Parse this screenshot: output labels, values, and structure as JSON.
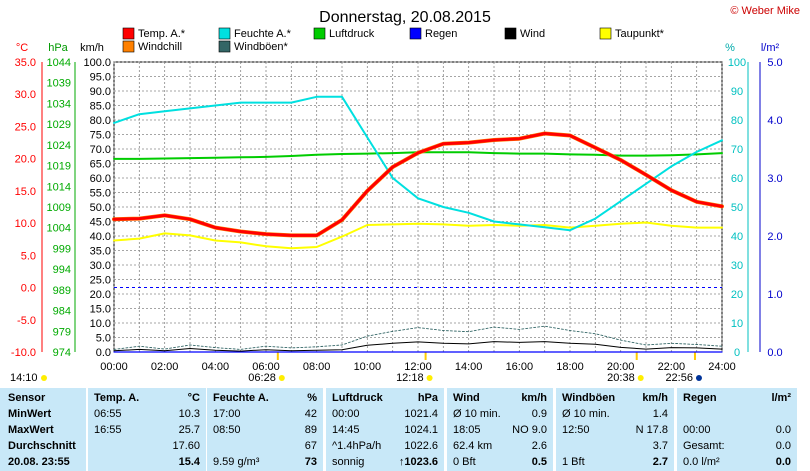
{
  "header": {
    "title": "Donnerstag, 20.08.2015",
    "credit": "© Weber Mike"
  },
  "colors": {
    "temp": "#ff0000",
    "windchill": "#ff8000",
    "humidity": "#00e0e0",
    "pressure": "#00cc00",
    "rain": "#0000ff",
    "wind": "#000000",
    "gust": "#336666",
    "dewpoint": "#ffff00",
    "table_bg": "#c8e8f8"
  },
  "legend": [
    {
      "label": "Temp. A.*",
      "color": "#ff0000"
    },
    {
      "label": "Feuchte A.*",
      "color": "#00e0e0"
    },
    {
      "label": "Luftdruck",
      "color": "#00cc00"
    },
    {
      "label": "Regen",
      "color": "#0000ff"
    },
    {
      "label": "Wind",
      "color": "#000000"
    },
    {
      "label": "Taupunkt*",
      "color": "#ffff00"
    },
    {
      "label": "Windchill",
      "color": "#ff8000"
    },
    {
      "label": "Windböen*",
      "color": "#336666"
    }
  ],
  "axes": {
    "temp_unit": "°C",
    "pressure_unit": "hPa",
    "wind_unit": "km/h",
    "humidity_unit": "%",
    "rain_unit": "l/m²",
    "temp_ticks": [
      "35.0",
      "30.0",
      "25.0",
      "20.0",
      "15.0",
      "10.0",
      "5.0",
      "0.0",
      "-5.0",
      "-10.0"
    ],
    "pressure_ticks": [
      "1044",
      "1039",
      "1034",
      "1029",
      "1024",
      "1019",
      "1014",
      "1009",
      "1004",
      "999",
      "994",
      "989",
      "984",
      "979",
      "974"
    ],
    "wind_ticks": [
      "100.0",
      "95.0",
      "90.0",
      "85.0",
      "80.0",
      "75.0",
      "70.0",
      "65.0",
      "60.0",
      "55.0",
      "50.0",
      "45.0",
      "40.0",
      "35.0",
      "30.0",
      "25.0",
      "20.0",
      "15.0",
      "10.0",
      "5.0",
      "0.0"
    ],
    "humidity_ticks": [
      "100",
      "90",
      "80",
      "70",
      "60",
      "50",
      "40",
      "30",
      "20",
      "10",
      "0"
    ],
    "rain_ticks": [
      "5.0",
      "4.0",
      "3.0",
      "2.0",
      "1.0",
      "0.0"
    ],
    "time_ticks": [
      "00:00",
      "02:00",
      "04:00",
      "06:00",
      "08:00",
      "10:00",
      "12:00",
      "14:00",
      "16:00",
      "18:00",
      "20:00",
      "22:00",
      "24:00"
    ]
  },
  "chart_data": {
    "type": "line",
    "title": "Donnerstag, 20.08.2015",
    "xlabel": "",
    "ylabel": "",
    "x_range": [
      "00:00",
      "24:00"
    ],
    "ylim_temp": [
      -10,
      35
    ],
    "ylim_pressure": [
      974,
      1044
    ],
    "ylim_wind": [
      0,
      100
    ],
    "ylim_humidity": [
      0,
      100
    ],
    "ylim_rain": [
      0,
      5
    ],
    "hours": [
      0,
      1,
      2,
      3,
      4,
      5,
      6,
      7,
      8,
      9,
      10,
      11,
      12,
      13,
      14,
      15,
      16,
      17,
      18,
      19,
      20,
      21,
      22,
      23,
      24
    ],
    "series": [
      {
        "name": "Temp. A.*",
        "axis": "temp",
        "values": [
          10.6,
          10.7,
          11.2,
          10.6,
          9.3,
          8.7,
          8.3,
          8.1,
          8.1,
          10.5,
          15.0,
          18.7,
          20.9,
          22.3,
          22.5,
          22.9,
          23.1,
          23.9,
          23.6,
          21.7,
          19.8,
          17.5,
          15.1,
          13.3,
          12.6
        ]
      },
      {
        "name": "Windchill",
        "axis": "temp",
        "values": [
          10.6,
          10.7,
          11.2,
          10.6,
          9.3,
          8.7,
          8.3,
          8.1,
          8.1,
          10.5,
          15.0,
          18.7,
          20.9,
          22.3,
          22.5,
          22.9,
          23.1,
          23.9,
          23.6,
          21.7,
          19.8,
          17.5,
          15.1,
          13.3,
          12.6
        ]
      },
      {
        "name": "Feuchte A.*",
        "axis": "humidity",
        "values": [
          79,
          82,
          83,
          84,
          85,
          86,
          86,
          86,
          88,
          88,
          74,
          60,
          53,
          50,
          48,
          45,
          44,
          43,
          42,
          46,
          52,
          58,
          64,
          69,
          73
        ]
      },
      {
        "name": "Luftdruck",
        "axis": "pressure",
        "values": [
          1020.6,
          1020.6,
          1020.7,
          1020.8,
          1020.9,
          1021.0,
          1021.1,
          1021.3,
          1021.6,
          1021.8,
          1021.9,
          1022.0,
          1022.2,
          1022.2,
          1022.2,
          1022.0,
          1021.9,
          1021.9,
          1021.7,
          1021.6,
          1021.4,
          1021.4,
          1021.5,
          1021.7,
          1022.0
        ]
      },
      {
        "name": "Taupunkt*",
        "axis": "temp",
        "values": [
          7.3,
          7.6,
          8.4,
          8.1,
          7.3,
          7.0,
          6.4,
          6.1,
          6.3,
          7.9,
          9.7,
          9.8,
          9.9,
          9.8,
          9.6,
          9.7,
          9.6,
          9.7,
          9.3,
          9.6,
          9.9,
          10.1,
          9.6,
          9.3,
          9.3
        ]
      },
      {
        "name": "Wind",
        "axis": "wind",
        "values": [
          0.4,
          0.9,
          0.4,
          1.2,
          0.6,
          0.3,
          0.8,
          0.4,
          0.6,
          0.8,
          2.3,
          3.0,
          3.5,
          3.0,
          2.8,
          3.6,
          3.3,
          3.6,
          3.0,
          2.7,
          1.6,
          1.0,
          1.5,
          1.4,
          1.0
        ]
      },
      {
        "name": "Windböen*",
        "axis": "wind",
        "values": [
          0.9,
          2.0,
          1.0,
          2.4,
          1.5,
          0.9,
          2.0,
          1.4,
          1.8,
          2.4,
          5.5,
          7.1,
          8.4,
          7.4,
          7.0,
          8.6,
          7.8,
          8.9,
          7.4,
          6.3,
          4.1,
          2.4,
          3.0,
          2.6,
          2.0
        ]
      },
      {
        "name": "Regen",
        "axis": "rain",
        "values": [
          0,
          0,
          0,
          0,
          0,
          0,
          0,
          0,
          0,
          0,
          0,
          0,
          0,
          0,
          0,
          0,
          0,
          0,
          0,
          0,
          0,
          0,
          0,
          0,
          0
        ]
      }
    ],
    "reference_line": {
      "axis": "temp",
      "value": 0
    },
    "sun_events": [
      {
        "time": "14:10",
        "kind": "sun"
      },
      {
        "time": "06:28",
        "kind": "sunrise"
      },
      {
        "time": "12:18",
        "kind": "noon"
      },
      {
        "time": "20:38",
        "kind": "sunset"
      },
      {
        "time": "22:56",
        "kind": "moon"
      }
    ]
  },
  "stats": {
    "row_labels": [
      "Sensor",
      "MinWert",
      "MaxWert",
      "Durchschnitt",
      "20.08.  23:55"
    ],
    "temp": {
      "h": "Temp. A.",
      "u": "°C",
      "rows": [
        [
          "06:55",
          "10.3"
        ],
        [
          "16:55",
          "25.7"
        ],
        [
          "",
          "17.60"
        ],
        [
          "",
          "15.4"
        ]
      ]
    },
    "hum": {
      "h": "Feuchte A.",
      "u": "%",
      "rows": [
        [
          "17:00",
          "42"
        ],
        [
          "08:50",
          "89"
        ],
        [
          "",
          "67"
        ],
        [
          "9.59 g/m³",
          "73"
        ]
      ]
    },
    "press": {
      "h": "Luftdruck",
      "u": "hPa",
      "rows": [
        [
          "00:00",
          "1021.4"
        ],
        [
          "14:45",
          "1024.1"
        ],
        [
          "^1.4hPa/h",
          "1022.6"
        ],
        [
          "sonnig",
          "↑1023.6"
        ]
      ]
    },
    "wind": {
      "h": "Wind",
      "u": "km/h",
      "rows": [
        [
          "Ø 10 min.",
          "0.9"
        ],
        [
          "18:05",
          "NO 9.0"
        ],
        [
          "62.4 km",
          "2.6"
        ],
        [
          "0 Bft",
          "0.5"
        ]
      ]
    },
    "gust": {
      "h": "Windböen",
      "u": "km/h",
      "rows": [
        [
          "Ø 10 min.",
          "1.4"
        ],
        [
          "12:50",
          "N 17.8"
        ],
        [
          "",
          "3.7"
        ],
        [
          "1 Bft",
          "2.7"
        ]
      ]
    },
    "rain": {
      "h": "Regen",
      "u": "l/m²",
      "rows": [
        [
          "",
          "",
          ""
        ],
        [
          "00:00",
          "0.0"
        ],
        [
          "Gesamt:",
          "0.0"
        ],
        [
          "0.0 l/m²",
          "0.0"
        ]
      ]
    }
  }
}
